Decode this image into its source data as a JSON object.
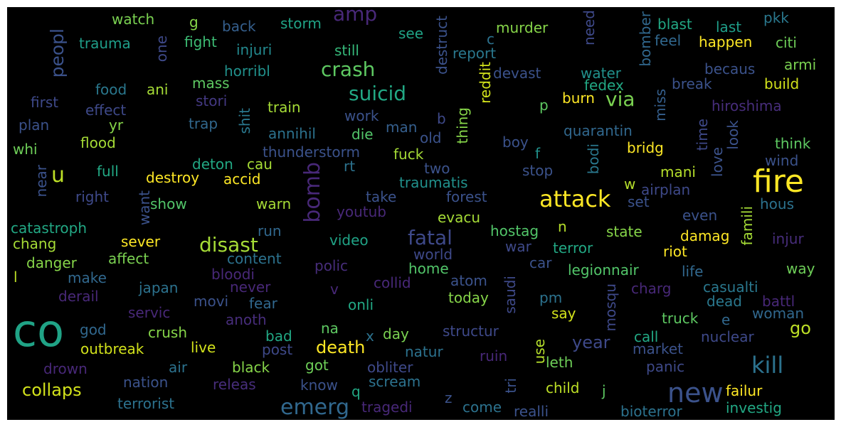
{
  "canvas": {
    "background": "#000000",
    "frame": "#ffffff"
  },
  "words": [
    {
      "id": "co",
      "text": "co",
      "color": "#20a386"
    },
    {
      "id": "fire",
      "text": "fire",
      "color": "#fde725"
    },
    {
      "id": "new",
      "text": "new",
      "color": "#3b528b"
    },
    {
      "id": "attack",
      "text": "attack",
      "color": "#fde725"
    },
    {
      "id": "kill",
      "text": "kill",
      "color": "#2c728e"
    },
    {
      "id": "bomb",
      "text": "bomb",
      "color": "#482878"
    },
    {
      "id": "emerg",
      "text": "emerg",
      "color": "#31688e"
    },
    {
      "id": "disast",
      "text": "disast",
      "color": "#a5db36"
    },
    {
      "id": "fatal",
      "text": "fatal",
      "color": "#3e4989"
    },
    {
      "id": "crash",
      "text": "crash",
      "color": "#5ec962"
    },
    {
      "id": "suicid",
      "text": "suicid",
      "color": "#22a884"
    },
    {
      "id": "amp",
      "text": "amp",
      "color": "#482878"
    },
    {
      "id": "via",
      "text": "via",
      "color": "#7ad151"
    },
    {
      "id": "peopl",
      "text": "peopl",
      "color": "#3b528b"
    },
    {
      "id": "u",
      "text": "u",
      "color": "#bddf26"
    },
    {
      "id": "death",
      "text": "death",
      "color": "#fde725"
    },
    {
      "id": "collaps",
      "text": "collaps",
      "color": "#d2e21b"
    },
    {
      "id": "year",
      "text": "year",
      "color": "#3e4989"
    },
    {
      "id": "go",
      "text": "go",
      "color": "#bddf26"
    },
    {
      "id": "watch",
      "text": "watch",
      "color": "#7ad151"
    },
    {
      "id": "g",
      "text": "g",
      "color": "#86d549"
    },
    {
      "id": "back",
      "text": "back",
      "color": "#355f8d"
    },
    {
      "id": "storm",
      "text": "storm",
      "color": "#20a386"
    },
    {
      "id": "destruct",
      "text": "destruct",
      "color": "#3b528b"
    },
    {
      "id": "need",
      "text": "need",
      "color": "#3e4989"
    },
    {
      "id": "bomber",
      "text": "bomber",
      "color": "#31688e"
    },
    {
      "id": "blast",
      "text": "blast",
      "color": "#22a884"
    },
    {
      "id": "last",
      "text": "last",
      "color": "#1f9e89"
    },
    {
      "id": "pkk",
      "text": "pkk",
      "color": "#2a788e"
    },
    {
      "id": "trauma",
      "text": "trauma",
      "color": "#1f9e89"
    },
    {
      "id": "one",
      "text": "one",
      "color": "#3e4989"
    },
    {
      "id": "fight",
      "text": "fight",
      "color": "#3dbc74"
    },
    {
      "id": "injuri",
      "text": "injuri",
      "color": "#23898e"
    },
    {
      "id": "still",
      "text": "still",
      "color": "#35b779"
    },
    {
      "id": "see",
      "text": "see",
      "color": "#20a386"
    },
    {
      "id": "c",
      "text": "c",
      "color": "#2c728e"
    },
    {
      "id": "report",
      "text": "report",
      "color": "#2a788e"
    },
    {
      "id": "murder",
      "text": "murder",
      "color": "#86d549"
    },
    {
      "id": "feel",
      "text": "feel",
      "color": "#31688e"
    },
    {
      "id": "happen",
      "text": "happen",
      "color": "#fde725"
    },
    {
      "id": "citi",
      "text": "citi",
      "color": "#6ece58"
    },
    {
      "id": "horribl",
      "text": "horribl",
      "color": "#21918c"
    },
    {
      "id": "mass",
      "text": "mass",
      "color": "#5ec962"
    },
    {
      "id": "reddit",
      "text": "reddit",
      "color": "#d2e21b"
    },
    {
      "id": "devast",
      "text": "devast",
      "color": "#3b528b"
    },
    {
      "id": "water",
      "text": "water",
      "color": "#21918c"
    },
    {
      "id": "becaus",
      "text": "becaus",
      "color": "#3b528b"
    },
    {
      "id": "armi",
      "text": "armi",
      "color": "#7ad151"
    },
    {
      "id": "food",
      "text": "food",
      "color": "#2a788e"
    },
    {
      "id": "ani",
      "text": "ani",
      "color": "#a5db36"
    },
    {
      "id": "stori",
      "text": "stori",
      "color": "#443983"
    },
    {
      "id": "first",
      "text": "first",
      "color": "#3e4989"
    },
    {
      "id": "effect",
      "text": "effect",
      "color": "#3e4989"
    },
    {
      "id": "train",
      "text": "train",
      "color": "#a5db36"
    },
    {
      "id": "work",
      "text": "work",
      "color": "#3b528b"
    },
    {
      "id": "b",
      "text": "b",
      "color": "#3e4989"
    },
    {
      "id": "thing",
      "text": "thing",
      "color": "#86d549"
    },
    {
      "id": "p",
      "text": "p",
      "color": "#5ec962"
    },
    {
      "id": "burn",
      "text": "burn",
      "color": "#fde725"
    },
    {
      "id": "fedex",
      "text": "fedex",
      "color": "#22a884"
    },
    {
      "id": "miss",
      "text": "miss",
      "color": "#355f8d"
    },
    {
      "id": "break",
      "text": "break",
      "color": "#3b528b"
    },
    {
      "id": "build",
      "text": "build",
      "color": "#d2e21b"
    },
    {
      "id": "hiroshima",
      "text": "hiroshima",
      "color": "#472d7b"
    },
    {
      "id": "plan",
      "text": "plan",
      "color": "#3b528b"
    },
    {
      "id": "yr",
      "text": "yr",
      "color": "#86d549"
    },
    {
      "id": "trap",
      "text": "trap",
      "color": "#31688e"
    },
    {
      "id": "shit",
      "text": "shit",
      "color": "#2a788e"
    },
    {
      "id": "man",
      "text": "man",
      "color": "#355f8d"
    },
    {
      "id": "annihil",
      "text": "annihil",
      "color": "#2c728e"
    },
    {
      "id": "die",
      "text": "die",
      "color": "#52c569"
    },
    {
      "id": "old",
      "text": "old",
      "color": "#3b528b"
    },
    {
      "id": "quarantin",
      "text": "quarantin",
      "color": "#31688e"
    },
    {
      "id": "time",
      "text": "time",
      "color": "#3e4989"
    },
    {
      "id": "look",
      "text": "look",
      "color": "#3b528b"
    },
    {
      "id": "think",
      "text": "think",
      "color": "#5ec962"
    },
    {
      "id": "whi",
      "text": "whi",
      "color": "#6ece58"
    },
    {
      "id": "flood",
      "text": "flood",
      "color": "#a5db36"
    },
    {
      "id": "deton",
      "text": "deton",
      "color": "#22a884"
    },
    {
      "id": "cau",
      "text": "cau",
      "color": "#a5db36"
    },
    {
      "id": "thunderstorm",
      "text": "thunderstorm",
      "color": "#3b528b"
    },
    {
      "id": "fuck",
      "text": "fuck",
      "color": "#a5db36"
    },
    {
      "id": "boy",
      "text": "boy",
      "color": "#3b528b"
    },
    {
      "id": "f",
      "text": "f",
      "color": "#21918c"
    },
    {
      "id": "bodi",
      "text": "bodi",
      "color": "#2a788e"
    },
    {
      "id": "bridg",
      "text": "bridg",
      "color": "#fde725"
    },
    {
      "id": "love",
      "text": "love",
      "color": "#3b528b"
    },
    {
      "id": "wind",
      "text": "wind",
      "color": "#3b528b"
    },
    {
      "id": "near",
      "text": "near",
      "color": "#3b528b"
    },
    {
      "id": "full",
      "text": "full",
      "color": "#22a884"
    },
    {
      "id": "destroy",
      "text": "destroy",
      "color": "#fde725"
    },
    {
      "id": "accid",
      "text": "accid",
      "color": "#fde725"
    },
    {
      "id": "rt",
      "text": "rt",
      "color": "#2c728e"
    },
    {
      "id": "two",
      "text": "two",
      "color": "#3b528b"
    },
    {
      "id": "stop",
      "text": "stop",
      "color": "#3b528b"
    },
    {
      "id": "mani",
      "text": "mani",
      "color": "#b5de2b"
    },
    {
      "id": "right",
      "text": "right",
      "color": "#3e4989"
    },
    {
      "id": "want",
      "text": "want",
      "color": "#3b528b"
    },
    {
      "id": "show",
      "text": "show",
      "color": "#52c569"
    },
    {
      "id": "traumatis",
      "text": "traumatis",
      "color": "#21918c"
    },
    {
      "id": "take",
      "text": "take",
      "color": "#3b528b"
    },
    {
      "id": "forest",
      "text": "forest",
      "color": "#3b528b"
    },
    {
      "id": "w",
      "text": "w",
      "color": "#b5de2b"
    },
    {
      "id": "airplan",
      "text": "airplan",
      "color": "#3e4989"
    },
    {
      "id": "set",
      "text": "set",
      "color": "#3b528b"
    },
    {
      "id": "famili",
      "text": "famili",
      "color": "#a5db36"
    },
    {
      "id": "warn",
      "text": "warn",
      "color": "#a5db36"
    },
    {
      "id": "youtub",
      "text": "youtub",
      "color": "#482878"
    },
    {
      "id": "evacu",
      "text": "evacu",
      "color": "#a5db36"
    },
    {
      "id": "even",
      "text": "even",
      "color": "#3b528b"
    },
    {
      "id": "hous",
      "text": "hous",
      "color": "#2c728e"
    },
    {
      "id": "catastroph",
      "text": "catastroph",
      "color": "#22a884"
    },
    {
      "id": "run",
      "text": "run",
      "color": "#31688e"
    },
    {
      "id": "n",
      "text": "n",
      "color": "#b5de2b"
    },
    {
      "id": "hostag",
      "text": "hostag",
      "color": "#52c569"
    },
    {
      "id": "state",
      "text": "state",
      "color": "#86d549"
    },
    {
      "id": "damag",
      "text": "damag",
      "color": "#fde725"
    },
    {
      "id": "injur",
      "text": "injur",
      "color": "#472d7b"
    },
    {
      "id": "chang",
      "text": "chang",
      "color": "#a5db36"
    },
    {
      "id": "sever",
      "text": "sever",
      "color": "#fde725"
    },
    {
      "id": "video",
      "text": "video",
      "color": "#20a386"
    },
    {
      "id": "war",
      "text": "war",
      "color": "#3e4989"
    },
    {
      "id": "terror",
      "text": "terror",
      "color": "#22a884"
    },
    {
      "id": "riot",
      "text": "riot",
      "color": "#fde725"
    },
    {
      "id": "danger",
      "text": "danger",
      "color": "#86d549"
    },
    {
      "id": "affect",
      "text": "affect",
      "color": "#7ad151"
    },
    {
      "id": "content",
      "text": "content",
      "color": "#2c728e"
    },
    {
      "id": "world",
      "text": "world",
      "color": "#3e4989"
    },
    {
      "id": "polic",
      "text": "polic",
      "color": "#472d7b"
    },
    {
      "id": "home",
      "text": "home",
      "color": "#52c569"
    },
    {
      "id": "car",
      "text": "car",
      "color": "#3b528b"
    },
    {
      "id": "legionnair",
      "text": "legionnair",
      "color": "#52c569"
    },
    {
      "id": "life",
      "text": "life",
      "color": "#31688e"
    },
    {
      "id": "way",
      "text": "way",
      "color": "#6ece58"
    },
    {
      "id": "l",
      "text": "l",
      "color": "#bddf26"
    },
    {
      "id": "make",
      "text": "make",
      "color": "#31688e"
    },
    {
      "id": "bloodi",
      "text": "bloodi",
      "color": "#482878"
    },
    {
      "id": "atom",
      "text": "atom",
      "color": "#3b528b"
    },
    {
      "id": "collid",
      "text": "collid",
      "color": "#482878"
    },
    {
      "id": "saudi",
      "text": "saudi",
      "color": "#3e4989"
    },
    {
      "id": "mosqu",
      "text": "mosqu",
      "color": "#3e4989"
    },
    {
      "id": "charg",
      "text": "charg",
      "color": "#482878"
    },
    {
      "id": "casualti",
      "text": "casualti",
      "color": "#2a788e"
    },
    {
      "id": "derail",
      "text": "derail",
      "color": "#482878"
    },
    {
      "id": "japan",
      "text": "japan",
      "color": "#2c728e"
    },
    {
      "id": "never",
      "text": "never",
      "color": "#482878"
    },
    {
      "id": "v",
      "text": "v",
      "color": "#482878"
    },
    {
      "id": "today",
      "text": "today",
      "color": "#86d549"
    },
    {
      "id": "pm",
      "text": "pm",
      "color": "#2c728e"
    },
    {
      "id": "dead",
      "text": "dead",
      "color": "#2a788e"
    },
    {
      "id": "battl",
      "text": "battl",
      "color": "#482878"
    },
    {
      "id": "movi",
      "text": "movi",
      "color": "#3b528b"
    },
    {
      "id": "fear",
      "text": "fear",
      "color": "#31688e"
    },
    {
      "id": "onli",
      "text": "onli",
      "color": "#22a884"
    },
    {
      "id": "say",
      "text": "say",
      "color": "#d2e21b"
    },
    {
      "id": "woman",
      "text": "woman",
      "color": "#31688e"
    },
    {
      "id": "servic",
      "text": "servic",
      "color": "#482878"
    },
    {
      "id": "anoth",
      "text": "anoth",
      "color": "#472d7b"
    },
    {
      "id": "truck",
      "text": "truck",
      "color": "#5ec962"
    },
    {
      "id": "e",
      "text": "e",
      "color": "#31688e"
    },
    {
      "id": "god",
      "text": "god",
      "color": "#31688e"
    },
    {
      "id": "crush",
      "text": "crush",
      "color": "#86d549"
    },
    {
      "id": "bad",
      "text": "bad",
      "color": "#22a884"
    },
    {
      "id": "na",
      "text": "na",
      "color": "#5ec962"
    },
    {
      "id": "x",
      "text": "x",
      "color": "#2c728e"
    },
    {
      "id": "day",
      "text": "day",
      "color": "#7ad151"
    },
    {
      "id": "structur",
      "text": "structur",
      "color": "#3e4989"
    },
    {
      "id": "call",
      "text": "call",
      "color": "#22a884"
    },
    {
      "id": "nuclear",
      "text": "nuclear",
      "color": "#3e4989"
    },
    {
      "id": "outbreak",
      "text": "outbreak",
      "color": "#d2e21b"
    },
    {
      "id": "live",
      "text": "live",
      "color": "#d2e21b"
    },
    {
      "id": "post",
      "text": "post",
      "color": "#3e4989"
    },
    {
      "id": "natur",
      "text": "natur",
      "color": "#2c728e"
    },
    {
      "id": "ruin",
      "text": "ruin",
      "color": "#482878"
    },
    {
      "id": "use",
      "text": "use",
      "color": "#b5de2b"
    },
    {
      "id": "market",
      "text": "market",
      "color": "#3b528b"
    },
    {
      "id": "drown",
      "text": "drown",
      "color": "#482878"
    },
    {
      "id": "air",
      "text": "air",
      "color": "#2c728e"
    },
    {
      "id": "black",
      "text": "black",
      "color": "#86d549"
    },
    {
      "id": "got",
      "text": "got",
      "color": "#6ece58"
    },
    {
      "id": "obliter",
      "text": "obliter",
      "color": "#3e4989"
    },
    {
      "id": "leth",
      "text": "leth",
      "color": "#6ece58"
    },
    {
      "id": "panic",
      "text": "panic",
      "color": "#3e4989"
    },
    {
      "id": "nation",
      "text": "nation",
      "color": "#3b528b"
    },
    {
      "id": "releas",
      "text": "releas",
      "color": "#472d7b"
    },
    {
      "id": "know",
      "text": "know",
      "color": "#3b528b"
    },
    {
      "id": "scream",
      "text": "scream",
      "color": "#2c728e"
    },
    {
      "id": "tri",
      "text": "tri",
      "color": "#3b528b"
    },
    {
      "id": "child",
      "text": "child",
      "color": "#bddf26"
    },
    {
      "id": "j",
      "text": "j",
      "color": "#5ec962"
    },
    {
      "id": "failur",
      "text": "failur",
      "color": "#fde725"
    },
    {
      "id": "q",
      "text": "q",
      "color": "#22a884"
    },
    {
      "id": "terrorist",
      "text": "terrorist",
      "color": "#2c728e"
    },
    {
      "id": "tragedi",
      "text": "tragedi",
      "color": "#482878"
    },
    {
      "id": "z",
      "text": "z",
      "color": "#3b528b"
    },
    {
      "id": "come",
      "text": "come",
      "color": "#2c728e"
    },
    {
      "id": "realli",
      "text": "realli",
      "color": "#3b528b"
    },
    {
      "id": "bioterror",
      "text": "bioterror",
      "color": "#2c728e"
    },
    {
      "id": "investig",
      "text": "investig",
      "color": "#22a884"
    }
  ]
}
